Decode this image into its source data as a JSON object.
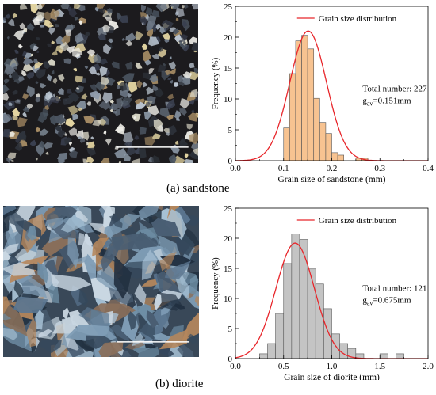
{
  "captions": {
    "a": "(a) sandstone",
    "b": "(b) diorite"
  },
  "micrographs": [
    {
      "bg": "#1c1b1e",
      "palette": [
        "#d9d6c6",
        "#b9c3cf",
        "#8f9cab",
        "#6c7785",
        "#4b5561",
        "#2e333b",
        "#e6d7a3",
        "#a58b64",
        "#f1f0ea",
        "#3a4050"
      ]
    },
    {
      "bg": "#394858",
      "palette": [
        "#7f9db6",
        "#a8c2d6",
        "#5b7690",
        "#35485c",
        "#c9d7e2",
        "#8a6f5a",
        "#6f8fa6",
        "#4a5e73",
        "#b5875c",
        "#213040"
      ]
    }
  ],
  "chart_data": [
    {
      "type": "bar",
      "ylabel": "Frequency (%)",
      "xlabel": "Grain size of sandstone (mm)",
      "xlim": [
        0.0,
        0.4
      ],
      "ylim": [
        0,
        25
      ],
      "xticks": [
        "0.0",
        "0.1",
        "0.2",
        "0.3",
        "0.4"
      ],
      "yticks": [
        "0",
        "5",
        "10",
        "15",
        "20",
        "25"
      ],
      "bin_start": 0.05,
      "bin_width": 0.0125,
      "values": [
        0,
        0,
        0,
        0,
        5.3,
        14.1,
        19.4,
        20.3,
        18.1,
        10.1,
        6.2,
        4.4,
        1.3,
        0.9,
        0,
        0,
        0.4,
        0.4
      ],
      "curve": {
        "mean": 0.151,
        "sd": 0.038,
        "peak": 21.0
      },
      "legend": "Grain size distribution",
      "annotations": {
        "total": "Total number: 227",
        "gav": "g",
        "gav_sub": "av",
        "gav_value": "=0.151mm"
      },
      "bar_color": "#f7c391",
      "curve_color": "#e8262b"
    },
    {
      "type": "bar",
      "ylabel": "Frequency (%)",
      "xlabel": "Grain size of diorite (mm)",
      "xlim": [
        0.0,
        2.0
      ],
      "ylim": [
        0,
        25
      ],
      "xticks": [
        "0.0",
        "0.5",
        "1.0",
        "1.5",
        "2.0"
      ],
      "yticks": [
        "0",
        "5",
        "10",
        "15",
        "20",
        "25"
      ],
      "bin_start": 0.25,
      "bin_width": 0.0833,
      "values": [
        0.8,
        2.5,
        7.5,
        15.8,
        20.7,
        19.8,
        14.9,
        12.4,
        8.3,
        4.1,
        2.5,
        1.7,
        0.8,
        0,
        0,
        0.8,
        0,
        0.8
      ],
      "curve": {
        "mean": 0.62,
        "sd": 0.2,
        "peak": 19.2
      },
      "legend": "Grain size distribution",
      "annotations": {
        "total": "Total number: 121",
        "gav": "g",
        "gav_sub": "av",
        "gav_value": "=0.675mm"
      },
      "bar_color": "#c4c4c4",
      "curve_color": "#e8262b"
    }
  ]
}
